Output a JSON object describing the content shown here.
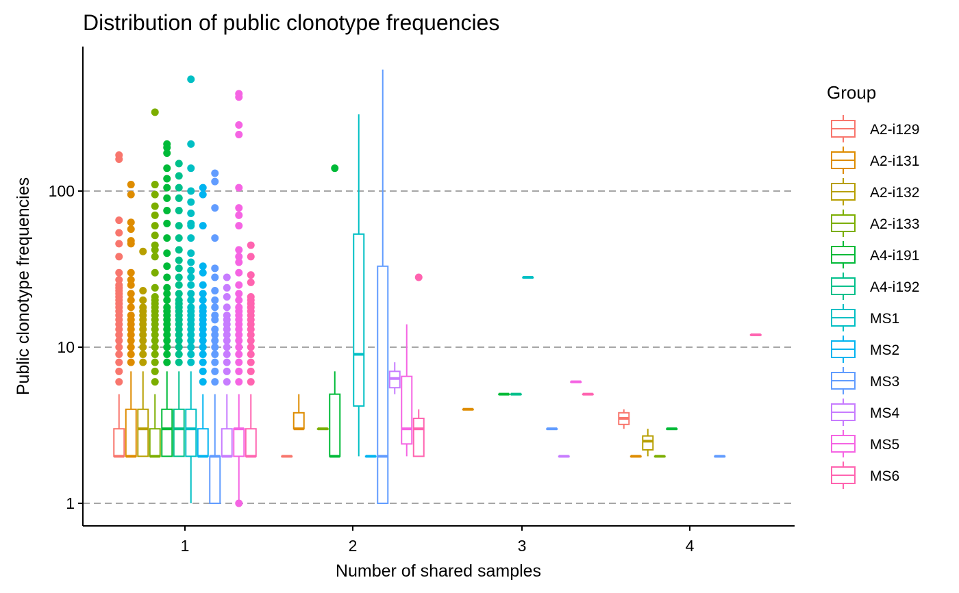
{
  "chart_data": {
    "type": "boxplot",
    "title": "Distribution of public clonotype frequencies",
    "xlabel": "Number of shared samples",
    "ylabel": "Public clonotype frequencies",
    "y_scale": "log10",
    "ylim": [
      0.75,
      700
    ],
    "y_ticks": [
      {
        "label": "1",
        "value": 1
      },
      {
        "label": "10",
        "value": 10
      },
      {
        "label": "100",
        "value": 100
      }
    ],
    "categories": [
      "1",
      "2",
      "3",
      "4"
    ],
    "grid": "horizontal dashed at major ticks",
    "legend": {
      "title": "Group",
      "position": "right"
    },
    "series": [
      {
        "name": "A2-i129",
        "color": "#F8766D",
        "boxes": [
          {
            "x": "1",
            "q1": 2,
            "median": 2,
            "q3": 3,
            "lower": 2,
            "upper": 5,
            "outliers": [
              6,
              7,
              8,
              9,
              10,
              11,
              12,
              13,
              14,
              15,
              16,
              17,
              18,
              19,
              20,
              21,
              22,
              23,
              24,
              25,
              27,
              30,
              38,
              46,
              54,
              65,
              160,
              170
            ]
          },
          {
            "x": "2",
            "q1": 2,
            "median": 2,
            "q3": 2,
            "lower": 2,
            "upper": 2,
            "outliers": []
          },
          {
            "x": "4",
            "q1": 3.2,
            "median": 3.5,
            "q3": 3.8,
            "lower": 3,
            "upper": 4,
            "outliers": []
          }
        ]
      },
      {
        "name": "A2-i131",
        "color": "#DE8C00",
        "boxes": [
          {
            "x": "1",
            "q1": 2,
            "median": 2,
            "q3": 4,
            "lower": 2,
            "upper": 7,
            "outliers": [
              8,
              9,
              10,
              11,
              12,
              13,
              14,
              15,
              16,
              18,
              20,
              22,
              25,
              27,
              30,
              46,
              48,
              57,
              63,
              95,
              110
            ]
          },
          {
            "x": "2",
            "q1": 3,
            "median": 3,
            "q3": 3.8,
            "lower": 3,
            "upper": 5,
            "outliers": []
          },
          {
            "x": "3",
            "q1": 4,
            "median": 4,
            "q3": 4,
            "lower": 4,
            "upper": 4,
            "outliers": []
          },
          {
            "x": "4",
            "q1": 2,
            "median": 2,
            "q3": 2,
            "lower": 2,
            "upper": 2,
            "outliers": []
          }
        ]
      },
      {
        "name": "A2-i132",
        "color": "#B79F00",
        "boxes": [
          {
            "x": "1",
            "q1": 2,
            "median": 3,
            "q3": 4,
            "lower": 2,
            "upper": 7,
            "outliers": [
              8,
              9,
              10,
              11,
              12,
              13,
              14,
              15,
              16,
              17,
              18,
              20,
              23,
              41
            ]
          },
          {
            "x": "4",
            "q1": 2.2,
            "median": 2.5,
            "q3": 2.7,
            "lower": 2,
            "upper": 3,
            "outliers": []
          }
        ]
      },
      {
        "name": "A2-i133",
        "color": "#7CAE00",
        "boxes": [
          {
            "x": "1",
            "q1": 2,
            "median": 2,
            "q3": 3,
            "lower": 2,
            "upper": 5,
            "outliers": [
              6,
              7,
              8,
              9,
              10,
              11,
              12,
              13,
              14,
              15,
              16,
              17,
              18,
              19,
              20,
              21,
              24,
              30,
              38,
              42,
              45,
              52,
              60,
              70,
              80,
              95,
              110,
              320
            ]
          },
          {
            "x": "2",
            "q1": 3,
            "median": 3,
            "q3": 3,
            "lower": 3,
            "upper": 3,
            "outliers": []
          },
          {
            "x": "4",
            "q1": 2,
            "median": 2,
            "q3": 2,
            "lower": 2,
            "upper": 2,
            "outliers": []
          }
        ]
      },
      {
        "name": "A4-i191",
        "color": "#00BA38",
        "boxes": [
          {
            "x": "1",
            "q1": 2,
            "median": 3,
            "q3": 4,
            "lower": 2,
            "upper": 7,
            "outliers": [
              8,
              9,
              10,
              11,
              12,
              13,
              14,
              15,
              16,
              17,
              18,
              20,
              22,
              24,
              28,
              33,
              40,
              50,
              62,
              75,
              90,
              105,
              120,
              140,
              175,
              190,
              200
            ]
          },
          {
            "x": "2",
            "q1": 2,
            "median": 2,
            "q3": 5,
            "lower": 2,
            "upper": 7,
            "outliers": [
              140
            ]
          },
          {
            "x": "3",
            "q1": 5,
            "median": 5,
            "q3": 5,
            "lower": 5,
            "upper": 5,
            "outliers": []
          },
          {
            "x": "4",
            "q1": 3,
            "median": 3,
            "q3": 3,
            "lower": 3,
            "upper": 3,
            "outliers": []
          }
        ]
      },
      {
        "name": "A4-i192",
        "color": "#00C08B",
        "boxes": [
          {
            "x": "1",
            "q1": 2,
            "median": 3,
            "q3": 4,
            "lower": 2,
            "upper": 7,
            "outliers": [
              8,
              9,
              10,
              11,
              12,
              13,
              14,
              15,
              16,
              17,
              18,
              19,
              20,
              22,
              25,
              28,
              32,
              36,
              42,
              50,
              60,
              75,
              90,
              105,
              125,
              150
            ]
          },
          {
            "x": "3",
            "q1": 5,
            "median": 5,
            "q3": 5,
            "lower": 5,
            "upper": 5,
            "outliers": []
          }
        ]
      },
      {
        "name": "MS1",
        "color": "#00BFC4",
        "boxes": [
          {
            "x": "1",
            "q1": 2,
            "median": 3,
            "q3": 4,
            "lower": 1,
            "upper": 7,
            "outliers": [
              8,
              9,
              10,
              11,
              12,
              13,
              14,
              15,
              16,
              17,
              18,
              20,
              22,
              25,
              28,
              31,
              35,
              40,
              50,
              60,
              62,
              72,
              85,
              100,
              140,
              200,
              520
            ]
          },
          {
            "x": "2",
            "q1": 4.2,
            "median": 9,
            "q3": 53,
            "lower": 2,
            "upper": 310,
            "outliers": []
          },
          {
            "x": "3",
            "q1": 28,
            "median": 28,
            "q3": 28,
            "lower": 28,
            "upper": 28,
            "outliers": []
          }
        ]
      },
      {
        "name": "MS2",
        "color": "#00B4F0",
        "boxes": [
          {
            "x": "1",
            "q1": 2,
            "median": 2,
            "q3": 3,
            "lower": 2,
            "upper": 5,
            "outliers": [
              6,
              7,
              8,
              9,
              10,
              11,
              12,
              13,
              14,
              15,
              16,
              17,
              18,
              20,
              22,
              25,
              30,
              33,
              60,
              95,
              105
            ]
          },
          {
            "x": "2",
            "q1": 2,
            "median": 2,
            "q3": 2,
            "lower": 2,
            "upper": 2,
            "outliers": []
          }
        ]
      },
      {
        "name": "MS3",
        "color": "#619CFF",
        "boxes": [
          {
            "x": "1",
            "q1": 1,
            "median": 2,
            "q3": 2,
            "lower": 1,
            "upper": 5,
            "outliers": [
              6,
              7,
              8,
              9,
              10,
              11,
              12,
              13,
              15,
              16,
              18,
              20,
              23,
              28,
              32,
              50,
              78,
              115,
              130
            ]
          },
          {
            "x": "2",
            "q1": 1,
            "median": 2,
            "q3": 33,
            "lower": 1,
            "upper": 600,
            "outliers": []
          },
          {
            "x": "3",
            "q1": 3,
            "median": 3,
            "q3": 3,
            "lower": 3,
            "upper": 3,
            "outliers": []
          },
          {
            "x": "4",
            "q1": 2,
            "median": 2,
            "q3": 2,
            "lower": 2,
            "upper": 2,
            "outliers": []
          }
        ]
      },
      {
        "name": "MS4",
        "color": "#C77CFF",
        "boxes": [
          {
            "x": "1",
            "q1": 2,
            "median": 2,
            "q3": 3,
            "lower": 2,
            "upper": 5,
            "outliers": [
              6,
              7,
              8,
              9,
              10,
              11,
              12,
              13,
              14,
              15,
              16,
              18,
              21,
              24,
              28
            ]
          },
          {
            "x": "2",
            "q1": 5.5,
            "median": 6.3,
            "q3": 7,
            "lower": 5,
            "upper": 8,
            "outliers": []
          },
          {
            "x": "3",
            "q1": 2,
            "median": 2,
            "q3": 2,
            "lower": 2,
            "upper": 2,
            "outliers": []
          }
        ]
      },
      {
        "name": "MS5",
        "color": "#F564E3",
        "boxes": [
          {
            "x": "1",
            "q1": 2,
            "median": 3,
            "q3": 3,
            "lower": 1,
            "upper": 5,
            "outliers": [
              1,
              6,
              7,
              8,
              9,
              10,
              11,
              12,
              13,
              14,
              15,
              16,
              17,
              18,
              20,
              22,
              25,
              30,
              35,
              38,
              42,
              60,
              70,
              78,
              105,
              230,
              265,
              400,
              420
            ]
          },
          {
            "x": "2",
            "q1": 2.4,
            "median": 3,
            "q3": 6.5,
            "lower": 2,
            "upper": 14,
            "outliers": []
          },
          {
            "x": "3",
            "q1": 6,
            "median": 6,
            "q3": 6,
            "lower": 6,
            "upper": 6,
            "outliers": []
          }
        ]
      },
      {
        "name": "MS6",
        "color": "#FF64B0",
        "boxes": [
          {
            "x": "1",
            "q1": 2,
            "median": 2,
            "q3": 3,
            "lower": 2,
            "upper": 5,
            "outliers": [
              6,
              7,
              8,
              9,
              10,
              11,
              12,
              13,
              14,
              15,
              16,
              17,
              18,
              19,
              20,
              21,
              26,
              29,
              38,
              45
            ]
          },
          {
            "x": "2",
            "q1": 2,
            "median": 3,
            "q3": 3.5,
            "lower": 2,
            "upper": 4,
            "outliers": [
              28
            ]
          },
          {
            "x": "3",
            "q1": 5,
            "median": 5,
            "q3": 5,
            "lower": 5,
            "upper": 5,
            "outliers": []
          },
          {
            "x": "4",
            "q1": 12,
            "median": 12,
            "q3": 12,
            "lower": 12,
            "upper": 12,
            "outliers": []
          }
        ]
      }
    ]
  }
}
